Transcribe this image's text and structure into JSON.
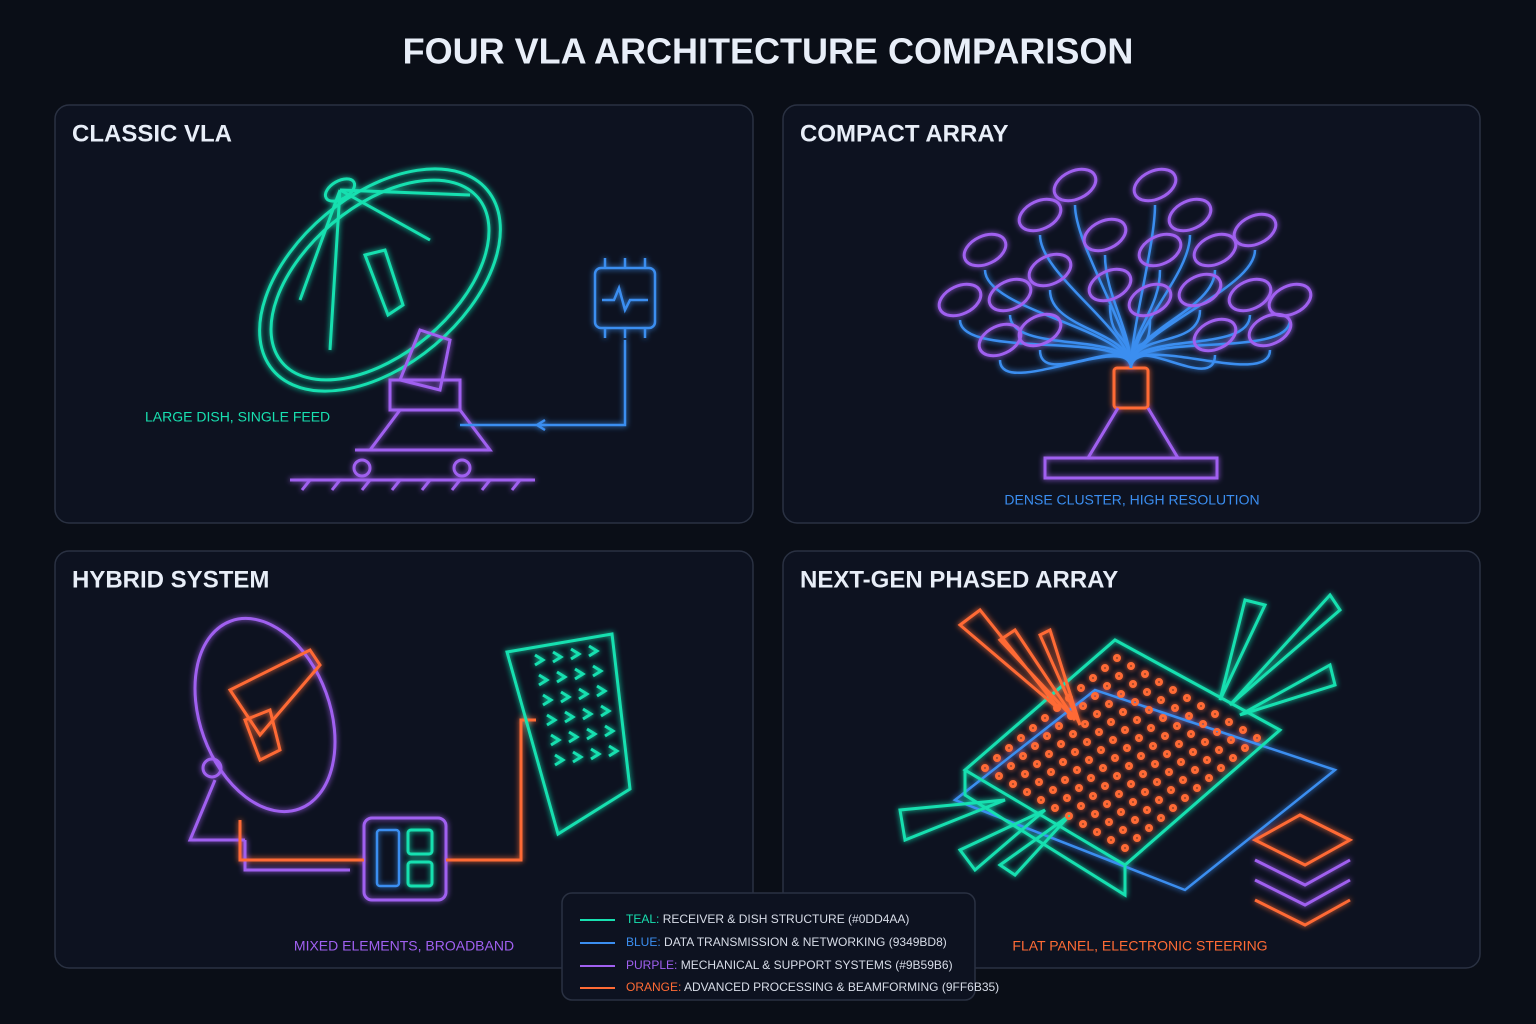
{
  "title": "FOUR VLA ARCHITECTURE COMPARISON",
  "panels": [
    {
      "title": "CLASSIC VLA",
      "caption": "LARGE DISH, SINGLE FEED"
    },
    {
      "title": "COMPACT ARRAY",
      "caption": "DENSE CLUSTER, HIGH RESOLUTION"
    },
    {
      "title": "HYBRID SYSTEM",
      "caption": "MIXED ELEMENTS, BROADBAND"
    },
    {
      "title": "NEXT-GEN PHASED ARRAY",
      "caption": "FLAT PANEL, ELECTRONIC STEERING"
    }
  ],
  "legend": [
    {
      "name": "TEAL:",
      "text": "RECEIVER & DISH STRUCTURE (#0DD4AA)"
    },
    {
      "name": "BLUE:",
      "text": "DATA TRANSMISSION & NETWORKING (9349BD8)"
    },
    {
      "name": "PURPLE:",
      "text": "MECHANICAL & SUPPORT SYSTEMS (#9B59B6)"
    },
    {
      "name": "ORANGE:",
      "text": "ADVANCED PROCESSING & BEAMFORMING (9FF6B35)"
    }
  ]
}
